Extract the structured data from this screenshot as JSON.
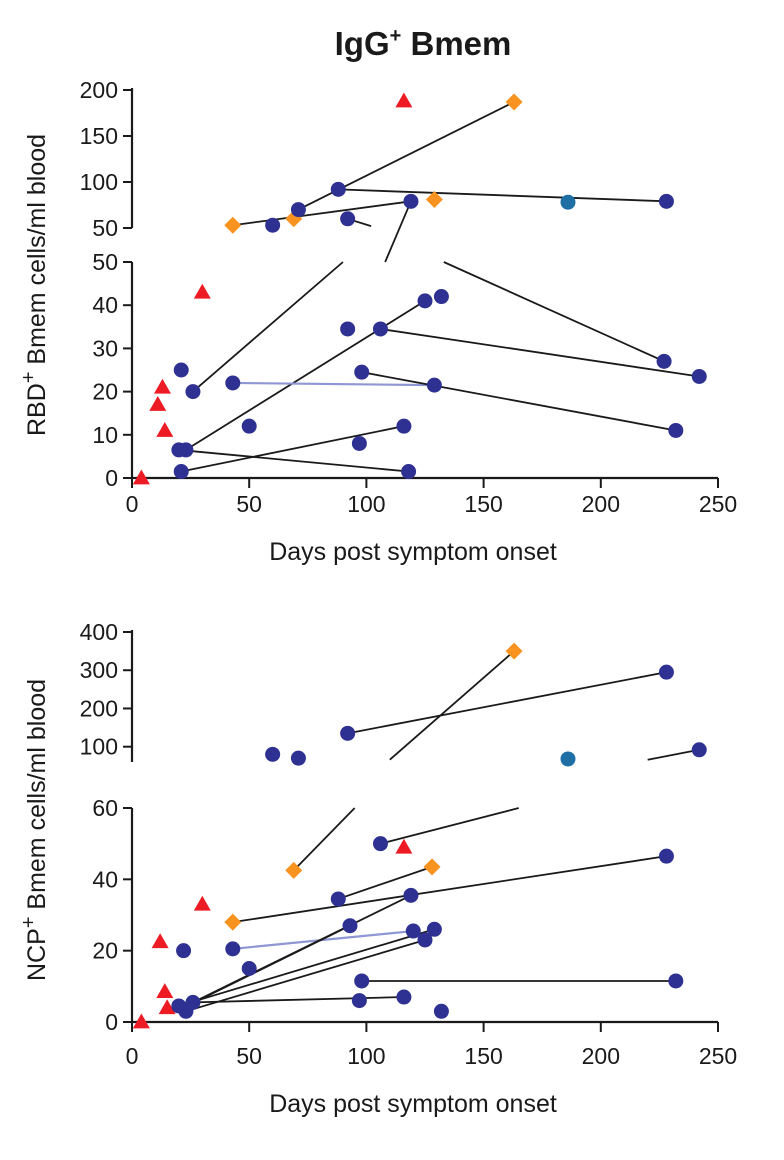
{
  "title": {
    "main": "IgG",
    "sup": "+",
    "rest": " Bmem"
  },
  "colors": {
    "navy": "#2e3192",
    "orange": "#f7931e",
    "red": "#ed1c24",
    "teal": "#1d6fa5",
    "line": "#1a1a1a",
    "lightline": "#8e97d3"
  },
  "chart_data": [
    {
      "type": "scatter",
      "id": "rbd",
      "ylabel_pre": "RBD",
      "ylabel_sup": "+",
      "ylabel_post": " Bmem cells/ml blood",
      "xlabel": "Days post symptom onset",
      "xlim": [
        0,
        250
      ],
      "xticks": [
        0,
        50,
        100,
        150,
        200,
        250
      ],
      "upper": {
        "ylim": [
          50,
          200
        ],
        "ticks": [
          50,
          100,
          150,
          200
        ]
      },
      "lower": {
        "ylim": [
          0,
          50
        ],
        "ticks": [
          0,
          10,
          20,
          30,
          40,
          50
        ]
      },
      "points": [
        {
          "x": 4,
          "y": 0,
          "s": "tri",
          "c": "red"
        },
        {
          "x": 11,
          "y": 17,
          "s": "tri",
          "c": "red"
        },
        {
          "x": 13,
          "y": 21,
          "s": "tri",
          "c": "red"
        },
        {
          "x": 14,
          "y": 11,
          "s": "tri",
          "c": "red"
        },
        {
          "x": 30,
          "y": 43,
          "s": "tri",
          "c": "red"
        },
        {
          "x": 116,
          "y": 188,
          "s": "tri",
          "c": "red"
        },
        {
          "x": 43,
          "y": 53,
          "s": "dia",
          "c": "orange"
        },
        {
          "x": 69,
          "y": 60,
          "s": "dia",
          "c": "orange"
        },
        {
          "x": 129,
          "y": 81,
          "s": "dia",
          "c": "orange"
        },
        {
          "x": 163,
          "y": 187,
          "s": "dia",
          "c": "orange"
        },
        {
          "x": 60,
          "y": 53,
          "s": "dot",
          "c": "navy"
        },
        {
          "x": 71,
          "y": 70,
          "s": "dot",
          "c": "navy"
        },
        {
          "x": 88,
          "y": 92,
          "s": "dot",
          "c": "navy"
        },
        {
          "x": 92,
          "y": 60,
          "s": "dot",
          "c": "navy"
        },
        {
          "x": 119,
          "y": 79,
          "s": "dot",
          "c": "navy"
        },
        {
          "x": 228,
          "y": 79,
          "s": "dot",
          "c": "navy"
        },
        {
          "x": 186,
          "y": 78,
          "s": "dot",
          "c": "teal"
        },
        {
          "x": 21,
          "y": 25,
          "s": "dot",
          "c": "navy"
        },
        {
          "x": 26,
          "y": 20,
          "s": "dot",
          "c": "navy"
        },
        {
          "x": 20,
          "y": 6.5,
          "s": "dot",
          "c": "navy"
        },
        {
          "x": 23,
          "y": 6.5,
          "s": "dot",
          "c": "navy"
        },
        {
          "x": 21,
          "y": 1.5,
          "s": "dot",
          "c": "navy"
        },
        {
          "x": 43,
          "y": 22,
          "s": "dot",
          "c": "navy"
        },
        {
          "x": 50,
          "y": 12,
          "s": "dot",
          "c": "navy"
        },
        {
          "x": 92,
          "y": 34.5,
          "s": "dot",
          "c": "navy"
        },
        {
          "x": 97,
          "y": 8,
          "s": "dot",
          "c": "navy"
        },
        {
          "x": 98,
          "y": 24.5,
          "s": "dot",
          "c": "navy"
        },
        {
          "x": 106,
          "y": 34.5,
          "s": "dot",
          "c": "navy"
        },
        {
          "x": 116,
          "y": 12,
          "s": "dot",
          "c": "navy"
        },
        {
          "x": 118,
          "y": 1.5,
          "s": "dot",
          "c": "navy"
        },
        {
          "x": 125,
          "y": 41,
          "s": "dot",
          "c": "navy"
        },
        {
          "x": 129,
          "y": 21.5,
          "s": "dot",
          "c": "navy"
        },
        {
          "x": 132,
          "y": 42,
          "s": "dot",
          "c": "navy"
        },
        {
          "x": 227,
          "y": 27,
          "s": "dot",
          "c": "navy"
        },
        {
          "x": 232,
          "y": 11,
          "s": "dot",
          "c": "navy"
        },
        {
          "x": 242,
          "y": 23.5,
          "s": "dot",
          "c": "navy"
        }
      ],
      "lines": [
        {
          "x1": 43,
          "y1": 53,
          "x2": 119,
          "y2": 79,
          "c": "line"
        },
        {
          "x1": 71,
          "y1": 70,
          "x2": 163,
          "y2": 187,
          "c": "line"
        },
        {
          "x1": 88,
          "y1": 92,
          "x2": 228,
          "y2": 79,
          "c": "line"
        },
        {
          "x1": 92,
          "y1": 60,
          "x2": 102,
          "y2": 52,
          "c": "line"
        },
        {
          "x1": 108,
          "y1": 50,
          "x2": 119,
          "y2": 79,
          "c": "line"
        },
        {
          "x1": 26,
          "y1": 20,
          "x2": 90,
          "y2": 50,
          "c": "line"
        },
        {
          "x1": 133,
          "y1": 50,
          "x2": 227,
          "y2": 27,
          "c": "line"
        },
        {
          "x1": 23,
          "y1": 6.5,
          "x2": 125,
          "y2": 41,
          "c": "line"
        },
        {
          "x1": 20,
          "y1": 6.5,
          "x2": 118,
          "y2": 1.5,
          "c": "line"
        },
        {
          "x1": 21,
          "y1": 1.5,
          "x2": 116,
          "y2": 12,
          "c": "line"
        },
        {
          "x1": 43,
          "y1": 22,
          "x2": 129,
          "y2": 21.5,
          "c": "lightline"
        },
        {
          "x1": 98,
          "y1": 24.5,
          "x2": 232,
          "y2": 11,
          "c": "line"
        },
        {
          "x1": 106,
          "y1": 34.5,
          "x2": 242,
          "y2": 23.5,
          "c": "line"
        }
      ]
    },
    {
      "type": "scatter",
      "id": "ncp",
      "ylabel_pre": "NCP",
      "ylabel_sup": "+",
      "ylabel_post": " Bmem cells/ml blood",
      "xlabel": "Days post symptom onset",
      "xlim": [
        0,
        250
      ],
      "xticks": [
        0,
        50,
        100,
        150,
        200,
        250
      ],
      "upper": {
        "ylim": [
          60,
          400
        ],
        "ticks": [
          100,
          200,
          300,
          400
        ]
      },
      "lower": {
        "ylim": [
          0,
          60
        ],
        "ticks": [
          0,
          20,
          40,
          60
        ]
      },
      "points": [
        {
          "x": 4,
          "y": 0,
          "s": "tri",
          "c": "red"
        },
        {
          "x": 12,
          "y": 22.5,
          "s": "tri",
          "c": "red"
        },
        {
          "x": 14,
          "y": 8.5,
          "s": "tri",
          "c": "red"
        },
        {
          "x": 15,
          "y": 4,
          "s": "tri",
          "c": "red"
        },
        {
          "x": 30,
          "y": 33,
          "s": "tri",
          "c": "red"
        },
        {
          "x": 116,
          "y": 49,
          "s": "tri",
          "c": "red"
        },
        {
          "x": 43,
          "y": 28,
          "s": "dia",
          "c": "orange"
        },
        {
          "x": 69,
          "y": 42.5,
          "s": "dia",
          "c": "orange"
        },
        {
          "x": 128,
          "y": 43.5,
          "s": "dia",
          "c": "orange"
        },
        {
          "x": 163,
          "y": 350,
          "s": "dia",
          "c": "orange"
        },
        {
          "x": 60,
          "y": 80,
          "s": "dot",
          "c": "navy"
        },
        {
          "x": 71,
          "y": 70,
          "s": "dot",
          "c": "navy"
        },
        {
          "x": 92,
          "y": 135,
          "s": "dot",
          "c": "navy"
        },
        {
          "x": 228,
          "y": 295,
          "s": "dot",
          "c": "navy"
        },
        {
          "x": 242,
          "y": 92,
          "s": "dot",
          "c": "navy"
        },
        {
          "x": 186,
          "y": 68,
          "s": "dot",
          "c": "teal"
        },
        {
          "x": 22,
          "y": 20,
          "s": "dot",
          "c": "navy"
        },
        {
          "x": 20,
          "y": 4.5,
          "s": "dot",
          "c": "navy"
        },
        {
          "x": 23,
          "y": 3,
          "s": "dot",
          "c": "navy"
        },
        {
          "x": 26,
          "y": 5.5,
          "s": "dot",
          "c": "navy"
        },
        {
          "x": 43,
          "y": 20.5,
          "s": "dot",
          "c": "navy"
        },
        {
          "x": 50,
          "y": 15,
          "s": "dot",
          "c": "navy"
        },
        {
          "x": 88,
          "y": 34.5,
          "s": "dot",
          "c": "navy"
        },
        {
          "x": 93,
          "y": 27,
          "s": "dot",
          "c": "navy"
        },
        {
          "x": 97,
          "y": 6,
          "s": "dot",
          "c": "navy"
        },
        {
          "x": 98,
          "y": 11.5,
          "s": "dot",
          "c": "navy"
        },
        {
          "x": 106,
          "y": 50,
          "s": "dot",
          "c": "navy"
        },
        {
          "x": 116,
          "y": 7,
          "s": "dot",
          "c": "navy"
        },
        {
          "x": 119,
          "y": 35.5,
          "s": "dot",
          "c": "navy"
        },
        {
          "x": 120,
          "y": 25.5,
          "s": "dot",
          "c": "navy"
        },
        {
          "x": 125,
          "y": 23,
          "s": "dot",
          "c": "navy"
        },
        {
          "x": 129,
          "y": 26,
          "s": "dot",
          "c": "navy"
        },
        {
          "x": 132,
          "y": 3,
          "s": "dot",
          "c": "navy"
        },
        {
          "x": 228,
          "y": 46.5,
          "s": "dot",
          "c": "navy"
        },
        {
          "x": 232,
          "y": 11.5,
          "s": "dot",
          "c": "navy"
        }
      ],
      "lines": [
        {
          "x1": 92,
          "y1": 135,
          "x2": 228,
          "y2": 295,
          "c": "line"
        },
        {
          "x1": 163,
          "y1": 350,
          "x2": 110,
          "y2": 66,
          "c": "line"
        },
        {
          "x1": 220,
          "y1": 66,
          "x2": 242,
          "y2": 92,
          "c": "line"
        },
        {
          "x1": 69,
          "y1": 42.5,
          "x2": 95,
          "y2": 60,
          "c": "line"
        },
        {
          "x1": 106,
          "y1": 50,
          "x2": 165,
          "y2": 60,
          "c": "line"
        },
        {
          "x1": 43,
          "y1": 28,
          "x2": 228,
          "y2": 46.5,
          "c": "line"
        },
        {
          "x1": 88,
          "y1": 34.5,
          "x2": 128,
          "y2": 43.5,
          "c": "line"
        },
        {
          "x1": 43,
          "y1": 20.5,
          "x2": 120,
          "y2": 25.5,
          "c": "lightline"
        },
        {
          "x1": 26,
          "y1": 5.5,
          "x2": 119,
          "y2": 35.5,
          "c": "line"
        },
        {
          "x1": 23,
          "y1": 3,
          "x2": 125,
          "y2": 23,
          "c": "line"
        },
        {
          "x1": 20,
          "y1": 4.5,
          "x2": 129,
          "y2": 26,
          "c": "line"
        },
        {
          "x1": 22,
          "y1": 4,
          "x2": 93,
          "y2": 27,
          "c": "line"
        },
        {
          "x1": 26,
          "y1": 5.5,
          "x2": 116,
          "y2": 7,
          "c": "line"
        },
        {
          "x1": 98,
          "y1": 11.5,
          "x2": 232,
          "y2": 11.5,
          "c": "line"
        }
      ]
    }
  ]
}
